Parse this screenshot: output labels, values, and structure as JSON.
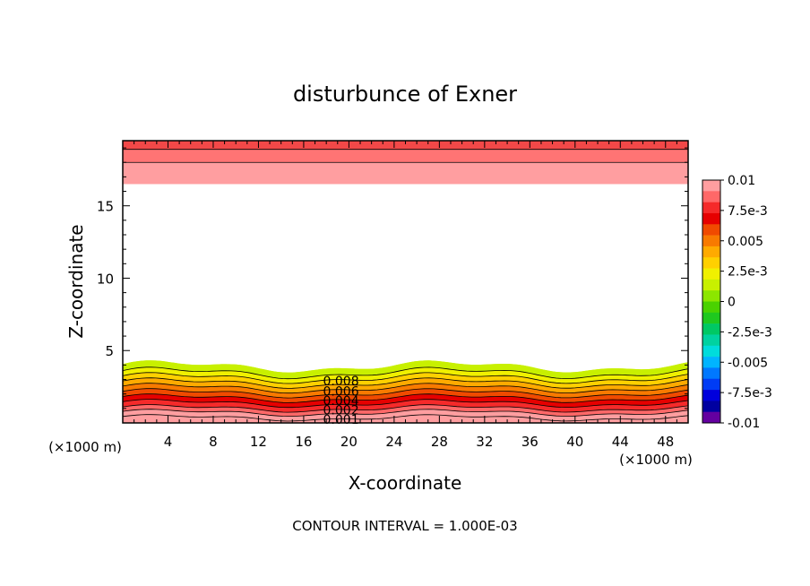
{
  "chart_data": {
    "type": "contour",
    "title": "disturbunce of Exner",
    "xlabel": "X-coordinate",
    "ylabel": "Z-coordinate",
    "x_unit_label": "(×1000 m)",
    "y_unit_label": "(×1000 m)",
    "xlim": [
      0,
      50
    ],
    "ylim": [
      0,
      19.5
    ],
    "x_ticks": [
      4,
      8,
      12,
      16,
      20,
      24,
      28,
      32,
      36,
      40,
      44,
      48
    ],
    "x_tick_labels": [
      "4",
      "8",
      "12",
      "16",
      "20",
      "24",
      "28",
      "32",
      "36",
      "40",
      "44",
      "48"
    ],
    "y_ticks": [
      5,
      10,
      15
    ],
    "y_tick_labels": [
      "5",
      "10",
      "15"
    ],
    "contour_interval_text": "CONTOUR INTERVAL = 1.000E-03",
    "contour_labels": [
      {
        "text": "0.008",
        "x": 19.3,
        "z": 2.9
      },
      {
        "text": "0.006",
        "x": 19.3,
        "z": 2.2
      },
      {
        "text": "0.004",
        "x": 19.3,
        "z": 1.55
      },
      {
        "text": "0.002",
        "x": 19.3,
        "z": 0.9
      },
      {
        "text": "0.001",
        "x": 19.3,
        "z": 0.25
      }
    ],
    "lower_layer": {
      "top_z": 3.9,
      "levels": [
        0.01,
        0.009,
        0.008,
        0.007,
        0.006,
        0.005,
        0.004,
        0.003,
        0.002,
        0.001
      ],
      "level_depths_km": [
        0.35,
        0.7,
        1.0,
        1.35,
        1.7,
        2.05,
        2.4,
        2.75,
        3.1,
        3.45,
        3.9
      ]
    },
    "upper_layer": {
      "bottom_z": 16.5,
      "levels": [
        0.01,
        0.009,
        0.008
      ],
      "line_z": [
        18.9,
        18.0
      ]
    },
    "colorbar": {
      "labels": [
        "0.01",
        "7.5e-3",
        "0.005",
        "2.5e-3",
        "0",
        "-2.5e-3",
        "-0.005",
        "-7.5e-3",
        "-0.01"
      ],
      "colors": [
        "#ff9ea0",
        "#ff6868",
        "#f52a2a",
        "#e60000",
        "#f04a00",
        "#f87a00",
        "#ffaa00",
        "#ffd000",
        "#f0f000",
        "#c8f000",
        "#8ce600",
        "#4ad200",
        "#1fc81f",
        "#00c864",
        "#00d2a0",
        "#00dcdc",
        "#00b4ff",
        "#0078ff",
        "#003cf5",
        "#0000dc",
        "#0000a0",
        "#6400a0"
      ]
    },
    "colors": {
      "lines": "#000000"
    }
  }
}
